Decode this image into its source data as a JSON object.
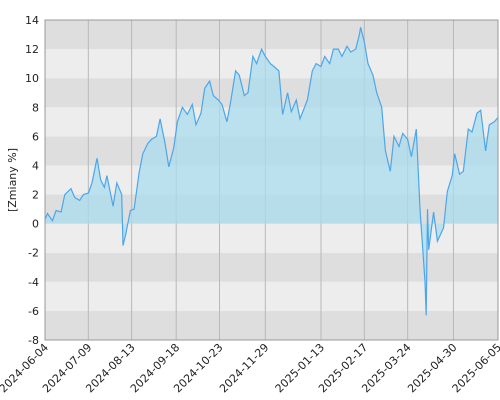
{
  "chart_data": {
    "type": "area",
    "y_label": "[Zmiany %]",
    "color": "#4da6e8",
    "fill": "#a9dcef",
    "x": [
      "2024-06-04",
      "2024-06-06",
      "2024-06-10",
      "2024-06-13",
      "2024-06-17",
      "2024-06-20",
      "2024-06-25",
      "2024-06-28",
      "2024-07-02",
      "2024-07-05",
      "2024-07-09",
      "2024-07-12",
      "2024-07-16",
      "2024-07-19",
      "2024-07-22",
      "2024-07-24",
      "2024-07-29",
      "2024-08-01",
      "2024-08-05",
      "2024-08-06",
      "2024-08-08",
      "2024-08-12",
      "2024-08-15",
      "2024-08-19",
      "2024-08-22",
      "2024-08-26",
      "2024-08-29",
      "2024-09-02",
      "2024-09-05",
      "2024-09-09",
      "2024-09-12",
      "2024-09-16",
      "2024-09-19",
      "2024-09-23",
      "2024-09-27",
      "2024-10-01",
      "2024-10-04",
      "2024-10-08",
      "2024-10-11",
      "2024-10-15",
      "2024-10-18",
      "2024-10-22",
      "2024-10-25",
      "2024-10-29",
      "2024-11-01",
      "2024-11-05",
      "2024-11-08",
      "2024-11-12",
      "2024-11-15",
      "2024-11-19",
      "2024-11-22",
      "2024-11-26",
      "2024-11-29",
      "2024-12-03",
      "2024-12-06",
      "2024-12-10",
      "2024-12-13",
      "2024-12-17",
      "2024-12-20",
      "2024-12-24",
      "2024-12-27",
      "2025-01-02",
      "2025-01-06",
      "2025-01-09",
      "2025-01-13",
      "2025-01-16",
      "2025-01-20",
      "2025-01-23",
      "2025-01-27",
      "2025-01-30",
      "2025-02-03",
      "2025-02-06",
      "2025-02-10",
      "2025-02-13",
      "2025-02-14",
      "2025-02-17",
      "2025-02-20",
      "2025-02-24",
      "2025-02-27",
      "2025-03-03",
      "2025-03-06",
      "2025-03-10",
      "2025-03-13",
      "2025-03-17",
      "2025-03-20",
      "2025-03-24",
      "2025-03-27",
      "2025-03-31",
      "2025-04-03",
      "2025-04-07",
      "2025-04-08",
      "2025-04-09",
      "2025-04-10",
      "2025-04-14",
      "2025-04-17",
      "2025-04-22",
      "2025-04-25",
      "2025-04-29",
      "2025-05-01",
      "2025-05-05",
      "2025-05-08",
      "2025-05-12",
      "2025-05-15",
      "2025-05-19",
      "2025-05-22",
      "2025-05-26",
      "2025-05-29",
      "2025-06-02",
      "2025-06-05"
    ],
    "values": [
      0.3,
      0.7,
      0.2,
      0.9,
      0.8,
      2.0,
      2.4,
      1.8,
      1.6,
      2.0,
      2.1,
      2.8,
      4.5,
      3.0,
      2.5,
      3.3,
      1.2,
      2.8,
      2.0,
      -1.5,
      -0.8,
      0.9,
      1.0,
      3.5,
      4.8,
      5.5,
      5.8,
      6.0,
      7.2,
      5.5,
      3.9,
      5.2,
      7.0,
      8.0,
      7.5,
      8.2,
      6.8,
      7.6,
      9.3,
      9.8,
      8.8,
      8.5,
      8.2,
      7.0,
      8.4,
      10.5,
      10.2,
      8.8,
      9.0,
      11.5,
      11.0,
      12.0,
      11.5,
      11.0,
      10.8,
      10.5,
      7.5,
      9.0,
      7.7,
      8.5,
      7.2,
      8.5,
      10.5,
      11.0,
      10.8,
      11.5,
      11.0,
      12.0,
      12.0,
      11.5,
      12.2,
      11.8,
      12.0,
      13.0,
      13.5,
      12.5,
      11.0,
      10.2,
      9.0,
      8.0,
      5.0,
      3.6,
      6.0,
      5.3,
      6.2,
      5.8,
      4.6,
      6.5,
      1.0,
      -4.0,
      -6.3,
      1.0,
      -1.8,
      0.8,
      -1.2,
      -0.3,
      2.2,
      3.3,
      4.8,
      3.4,
      3.6,
      6.5,
      6.3,
      7.6,
      7.8,
      5.0,
      6.8,
      7.0,
      7.3
    ],
    "xlim": [
      "2024-06-04",
      "2025-06-05"
    ],
    "xticks": [
      "2024-06-04",
      "2024-07-09",
      "2024-08-13",
      "2024-09-18",
      "2024-10-23",
      "2024-11-29",
      "2025-01-13",
      "2025-02-17",
      "2025-03-24",
      "2025-04-30",
      "2025-06-05"
    ],
    "ylim": [
      -8,
      14
    ],
    "yticks": [
      -8,
      -6,
      -4,
      -2,
      0,
      2,
      4,
      6,
      8,
      10,
      12,
      14
    ],
    "grid": true
  }
}
